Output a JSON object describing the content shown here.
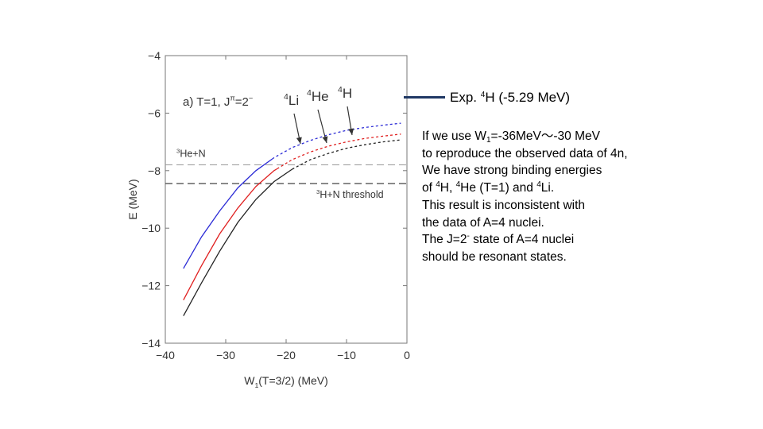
{
  "chart_data": {
    "type": "line",
    "xlabel_main": "W",
    "xlabel_sub": "1",
    "xlabel_rest": "(T=3/2)  (MeV)",
    "ylabel": "E (MeV)",
    "xlim": [
      -40,
      0
    ],
    "ylim": [
      -14,
      -4
    ],
    "x_ticks": [
      -40,
      -30,
      -20,
      -10,
      0
    ],
    "y_ticks": [
      -4,
      -6,
      -8,
      -10,
      -12,
      -14
    ],
    "x_tick_labels": [
      "−40",
      "−30",
      "−20",
      "−10",
      "0"
    ],
    "y_tick_labels": [
      "−4",
      "−6",
      "−8",
      "−10",
      "−12",
      "−14"
    ],
    "panel_label": {
      "main": "a) T=1, J",
      "sup1": "π",
      "mid": "=2",
      "sup2": "−"
    },
    "thresholds": [
      {
        "label_sup": "3",
        "label": "He+N",
        "y": -7.8,
        "color": "#999999"
      },
      {
        "label_sup": "3",
        "label": "H+N threshold",
        "y": -8.45,
        "color": "#555555"
      }
    ],
    "series": [
      {
        "name_sup": "4",
        "name": "Li",
        "color": "#2b2bd6",
        "x": [
          -37,
          -34,
          -31,
          -28,
          -25,
          -22,
          -19,
          -16,
          -13,
          -10,
          -7,
          -4,
          -1
        ],
        "y": [
          -11.4,
          -10.3,
          -9.4,
          -8.6,
          -8.0,
          -7.55,
          -7.2,
          -6.95,
          -6.75,
          -6.6,
          -6.5,
          -6.42,
          -6.35
        ],
        "solid_until": -22.3
      },
      {
        "name_sup": "4",
        "name": "He",
        "color": "#e02020",
        "x": [
          -37,
          -34,
          -31,
          -28,
          -25,
          -22,
          -19,
          -16,
          -13,
          -10,
          -7,
          -4,
          -1
        ],
        "y": [
          -12.5,
          -11.3,
          -10.2,
          -9.3,
          -8.55,
          -8.0,
          -7.62,
          -7.35,
          -7.15,
          -7.0,
          -6.88,
          -6.8,
          -6.73
        ],
        "solid_until": -21.5
      },
      {
        "name_sup": "4",
        "name": "H",
        "color": "#222222",
        "x": [
          -37,
          -34,
          -31,
          -28,
          -25,
          -22,
          -19,
          -16,
          -13,
          -10,
          -7,
          -4,
          -1
        ],
        "y": [
          -13.05,
          -11.9,
          -10.8,
          -9.8,
          -9.0,
          -8.38,
          -7.95,
          -7.62,
          -7.4,
          -7.22,
          -7.1,
          -7.0,
          -6.93
        ],
        "solid_until": -19.0
      }
    ],
    "legend": "arrows"
  },
  "exp": {
    "prefix": "Exp. ",
    "sup": "4",
    "rest": "H (-5.29 MeV)",
    "color": "#1f3864"
  },
  "notes": {
    "l1_a": "If we use W",
    "l1_sub": "1",
    "l1_b": "=-36MeV〜-30 MeV",
    "l2": "to reproduce the observed data of 4n,",
    "l3": "We have strong binding energies",
    "l4_a": "of ",
    "l4_s1": "4",
    "l4_b": "H, ",
    "l4_s2": "4",
    "l4_c": "He (T=1) and ",
    "l4_s3": "4",
    "l4_d": "Li.",
    "l5": "This result is inconsistent with",
    "l6": "the data of A=4 nuclei.",
    "l7_a": "The J=2",
    "l7_sup": "-",
    "l7_b": " state of A=4 nuclei",
    "l8": "should be resonant states."
  }
}
